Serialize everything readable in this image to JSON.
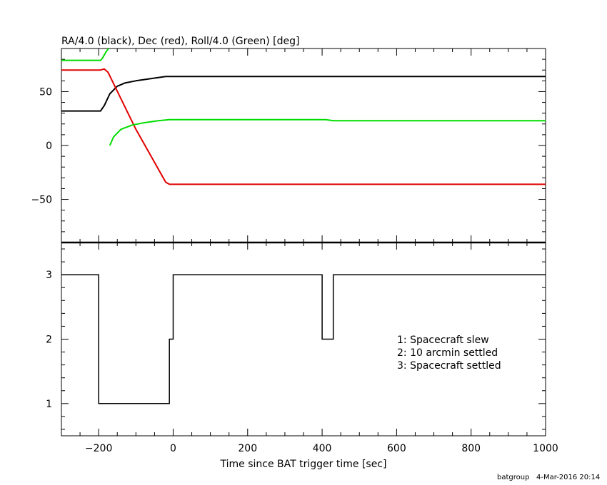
{
  "chart_data": [
    {
      "type": "line",
      "title": "RA/4.0 (black), Dec (red), Roll/4.0 (Green) [deg]",
      "xlim": [
        -300,
        1000
      ],
      "ylim": [
        -90,
        90
      ],
      "y_ticks": [
        -50,
        0,
        50
      ],
      "y_tick_labels": [
        "−50",
        "0",
        "50"
      ],
      "series": [
        {
          "color": "#000000",
          "x": [
            -300,
            -195,
            -185,
            -170,
            -150,
            -130,
            -100,
            -60,
            -20,
            0,
            420,
            1000
          ],
          "y": [
            32,
            32,
            37,
            48,
            55,
            58,
            60,
            62,
            64,
            64,
            64,
            64
          ]
        },
        {
          "color": "#e00000",
          "x": [
            -300,
            -195,
            -185,
            -175,
            -100,
            -20,
            -10,
            0,
            420,
            1000
          ],
          "y": [
            70,
            70,
            71,
            68,
            15,
            -34,
            -36,
            -36,
            -36,
            -36
          ]
        },
        {
          "color": "#00dd00",
          "x": [
            -300,
            -195,
            -190,
            -180,
            -173
          ],
          "y": [
            79,
            79,
            81,
            87,
            90
          ]
        },
        {
          "color": "#00dd00",
          "x": [
            -170,
            -160,
            -140,
            -110,
            -80,
            -40,
            -10,
            0,
            410,
            430,
            1000
          ],
          "y": [
            0,
            8,
            15,
            19,
            21,
            23,
            24,
            24,
            24,
            23,
            23
          ]
        }
      ]
    },
    {
      "type": "line",
      "xlabel": "Time since BAT trigger time [sec]",
      "xlim": [
        -300,
        1000
      ],
      "ylim": [
        0.5,
        3.5
      ],
      "x_ticks": [
        -200,
        0,
        200,
        400,
        600,
        800,
        1000
      ],
      "x_tick_labels": [
        "−200",
        "0",
        "200",
        "400",
        "600",
        "800",
        "1000"
      ],
      "y_ticks": [
        1,
        2,
        3
      ],
      "y_tick_labels": [
        "1",
        "2",
        "3"
      ],
      "series": [
        {
          "color": "#000000",
          "x": [
            -300,
            -200,
            -200,
            -10,
            -10,
            0,
            0,
            400,
            400,
            430,
            430,
            1000
          ],
          "y": [
            3,
            3,
            1,
            1,
            2,
            2,
            3,
            3,
            2,
            2,
            3,
            3
          ]
        }
      ],
      "annotations": [
        "1: Spacecraft slew",
        "2: 10 arcmin settled",
        "3: Spacecraft settled"
      ]
    }
  ],
  "footer": {
    "user": "batgroup",
    "date": "4-Mar-2016 20:14"
  }
}
